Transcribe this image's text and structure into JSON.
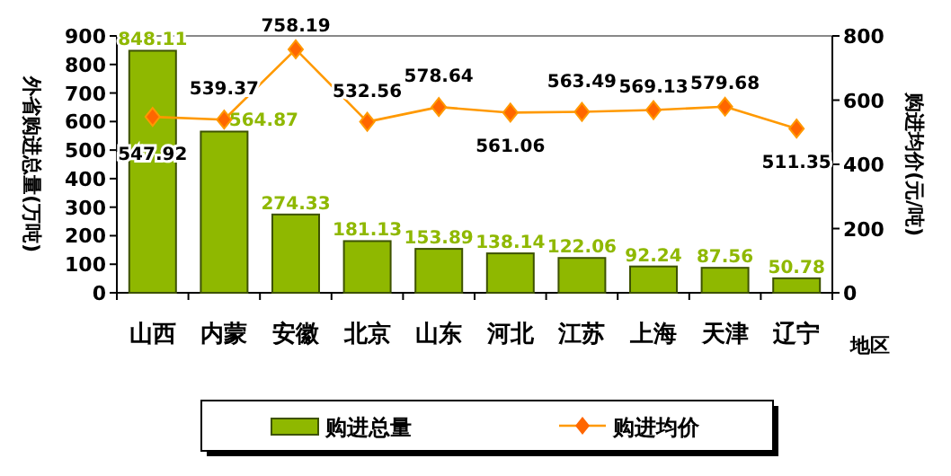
{
  "chart_data": {
    "type": "bar",
    "xlabel": "地区",
    "ylabel": "外省购进总量(万吨)",
    "y2label": "购进均价(元/吨)",
    "categories": [
      "山西",
      "内蒙",
      "安徽",
      "北京",
      "山东",
      "河北",
      "江苏",
      "上海",
      "天津",
      "辽宁"
    ],
    "series": [
      {
        "name": "购进总量",
        "color": "#8fb800",
        "values": [
          848.11,
          564.87,
          274.33,
          181.13,
          153.89,
          138.14,
          122.06,
          92.24,
          87.56,
          50.78
        ]
      },
      {
        "name": "购进均价",
        "type": "line",
        "axis": "y2",
        "color": "#ff9900",
        "marker": "diamond",
        "values": [
          547.92,
          539.37,
          758.19,
          532.56,
          578.64,
          561.06,
          563.49,
          569.13,
          579.68,
          511.35
        ]
      }
    ],
    "ylim": [
      0,
      900
    ],
    "yticks": [
      0,
      100,
      200,
      300,
      400,
      500,
      600,
      700,
      800,
      900
    ],
    "y2lim": [
      0,
      800
    ],
    "y2ticks": [
      0,
      200,
      400,
      600,
      800
    ],
    "data_labels": true,
    "legend": "bottom",
    "grid": false
  }
}
